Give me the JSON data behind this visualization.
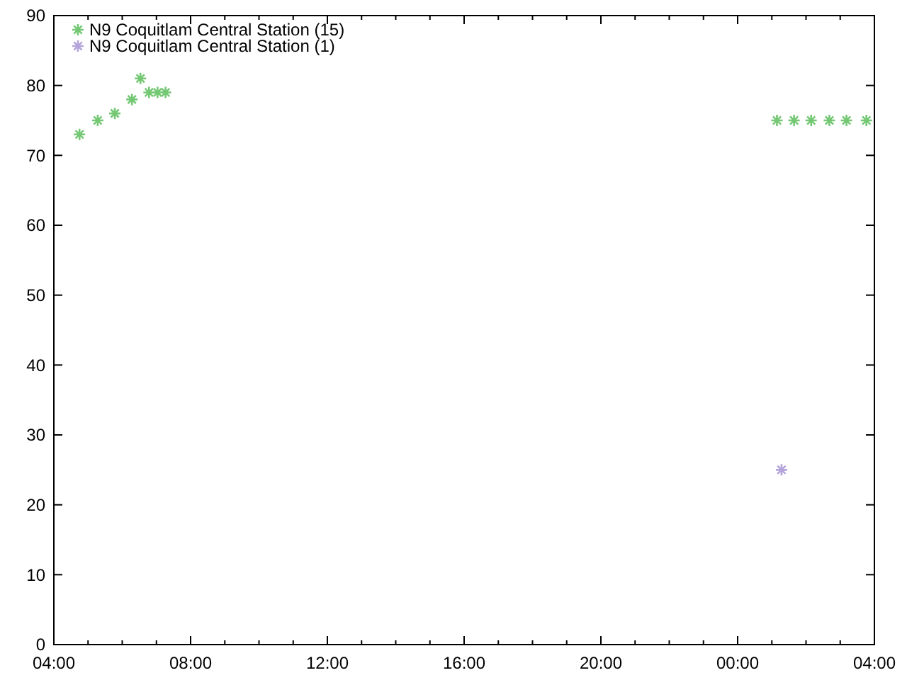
{
  "chart_data": {
    "type": "scatter",
    "marker": "cross",
    "legend": "top left",
    "xlim": [
      "2000-01-01T04:00",
      "2000-01-02T04:00"
    ],
    "ylim": [
      0,
      90
    ],
    "yticks": [
      0,
      10,
      20,
      30,
      40,
      50,
      60,
      70,
      80,
      90
    ],
    "xticks": [
      {
        "value": "2000-01-01T04:00",
        "label": "04:00"
      },
      {
        "value": "2000-01-01T05:00",
        "label": null
      },
      {
        "value": "2000-01-01T06:00",
        "label": null
      },
      {
        "value": "2000-01-01T07:00",
        "label": null
      },
      {
        "value": "2000-01-01T08:00",
        "label": "08:00"
      },
      {
        "value": "2000-01-01T09:00",
        "label": null
      },
      {
        "value": "2000-01-01T10:00",
        "label": null
      },
      {
        "value": "2000-01-01T11:00",
        "label": null
      },
      {
        "value": "2000-01-01T12:00",
        "label": "12:00"
      },
      {
        "value": "2000-01-01T13:00",
        "label": null
      },
      {
        "value": "2000-01-01T14:00",
        "label": null
      },
      {
        "value": "2000-01-01T15:00",
        "label": null
      },
      {
        "value": "2000-01-01T16:00",
        "label": "16:00"
      },
      {
        "value": "2000-01-01T17:00",
        "label": null
      },
      {
        "value": "2000-01-01T18:00",
        "label": null
      },
      {
        "value": "2000-01-01T19:00",
        "label": null
      },
      {
        "value": "2000-01-01T20:00",
        "label": "20:00"
      },
      {
        "value": "2000-01-01T21:00",
        "label": null
      },
      {
        "value": "2000-01-01T22:00",
        "label": null
      },
      {
        "value": "2000-01-01T23:00",
        "label": null
      },
      {
        "value": "2000-01-02T00:00",
        "label": "00:00"
      },
      {
        "value": "2000-01-02T01:00",
        "label": null
      },
      {
        "value": "2000-01-02T02:00",
        "label": null
      },
      {
        "value": "2000-01-02T03:00",
        "label": null
      },
      {
        "value": "2000-01-02T04:00",
        "label": "04:00"
      }
    ],
    "series": [
      {
        "name": "N9 Coquitlam Central Station (15)",
        "color": "#74c874",
        "x": [
          "2000-01-01T04:45",
          "2000-01-01T05:17",
          "2000-01-01T05:47",
          "2000-01-01T06:17",
          "2000-01-01T06:32",
          "2000-01-01T06:47",
          "2000-01-01T07:02",
          "2000-01-01T07:16",
          "2000-01-02T01:09",
          "2000-01-02T01:39",
          "2000-01-02T02:09",
          "2000-01-02T02:41",
          "2000-01-02T03:11",
          "2000-01-02T03:46"
        ],
        "values": [
          73,
          75,
          76,
          78,
          81,
          79,
          79,
          79,
          75,
          75,
          75,
          75,
          75,
          75
        ]
      },
      {
        "name": "N9 Coquitlam Central Station (1)",
        "color": "#b4a4dc",
        "x": [
          "2000-01-02T01:17"
        ],
        "values": [
          25
        ]
      }
    ]
  }
}
